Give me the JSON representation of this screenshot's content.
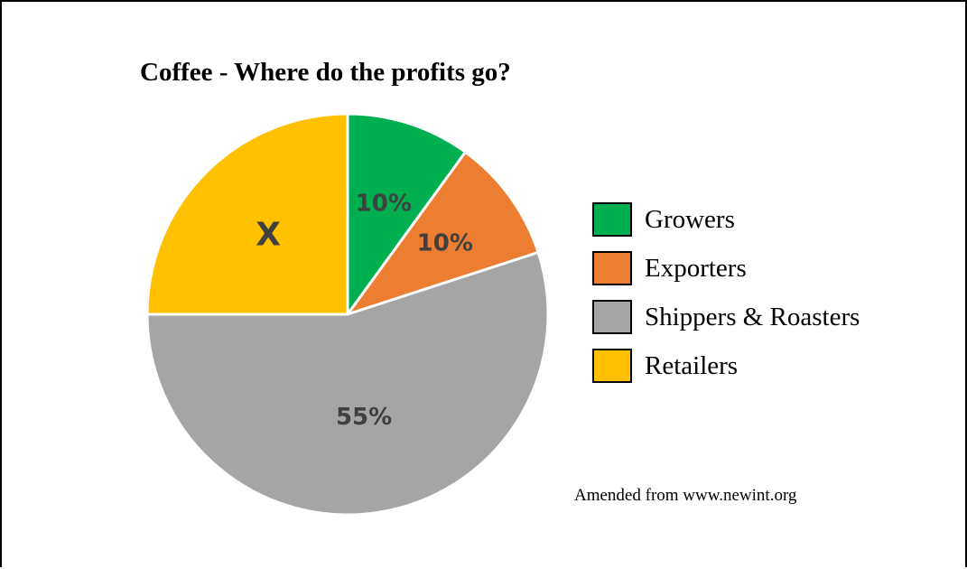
{
  "chart_data": {
    "type": "pie",
    "title": "Coffee - Where do the profits go?",
    "slices": [
      {
        "name": "Growers",
        "value": 10,
        "label": "10%",
        "color": "#00b050"
      },
      {
        "name": "Exporters",
        "value": 10,
        "label": "10%",
        "color": "#ed7d31"
      },
      {
        "name": "Shippers & Roasters",
        "value": 55,
        "label": "55%",
        "color": "#a5a5a5"
      },
      {
        "name": "Retailers",
        "value": 25,
        "label": "X",
        "color": "#ffc000"
      }
    ],
    "legend": {
      "position": "right",
      "items": [
        "Growers",
        "Exporters",
        "Shippers & Roasters",
        "Retailers"
      ]
    },
    "start_angle_deg": 0,
    "direction": "clockwise"
  },
  "source_note": "Amended from www.newint.org"
}
